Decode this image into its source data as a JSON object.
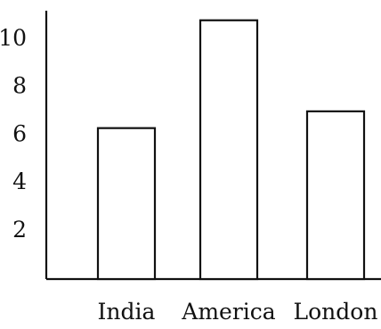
{
  "chart_data": {
    "type": "bar",
    "title": "",
    "xlabel": "",
    "ylabel": "",
    "categories": [
      "India",
      "America",
      "London"
    ],
    "values": [
      6.3,
      10.8,
      7.0
    ],
    "yticks": [
      2,
      4,
      6,
      8,
      10
    ],
    "ytick_labels": [
      "2",
      "4",
      "6",
      "8",
      "10"
    ],
    "ylim": [
      0,
      11.2
    ],
    "grid": false,
    "bar_fill": "#ffffff",
    "bar_stroke": "#111111",
    "axis_color": "#111111"
  }
}
